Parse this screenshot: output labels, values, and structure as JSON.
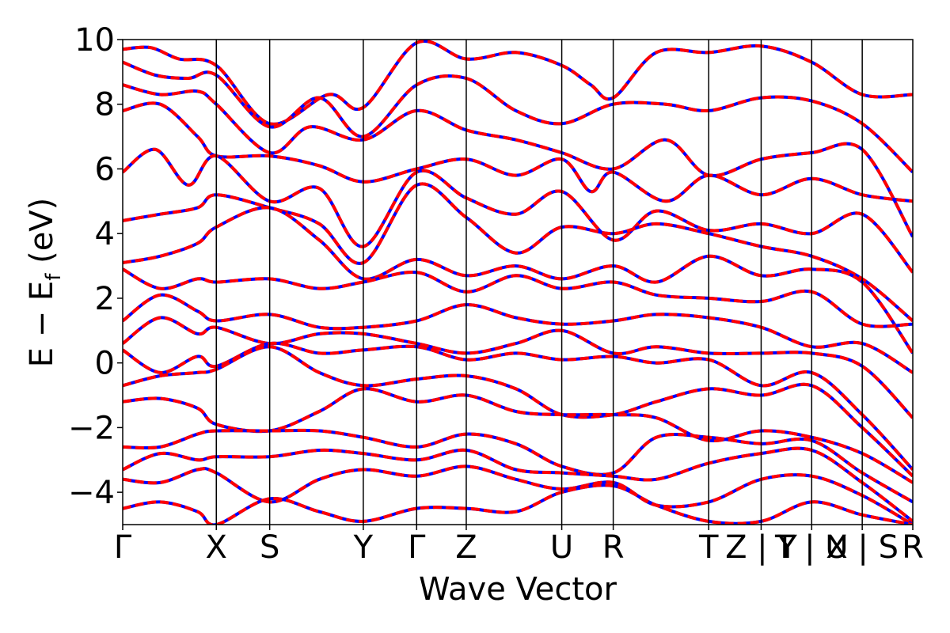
{
  "chart_data": {
    "type": "line",
    "title": "",
    "xlabel": "Wave Vector",
    "ylabel": "E − E_f (eV)",
    "ylabel_main": "E − E",
    "ylabel_sub": "f",
    "ylabel_unit": " (eV)",
    "ylim": [
      -5,
      10
    ],
    "xlim": [
      0,
      8.44
    ],
    "grid": false,
    "yticks": [
      -4,
      -2,
      0,
      2,
      4,
      6,
      8,
      10
    ],
    "ytick_labels": [
      "−4",
      "−2",
      "0",
      "2",
      "4",
      "6",
      "8",
      "10"
    ],
    "kpath_ticks": [
      {
        "label": "Γ",
        "x": 0.0
      },
      {
        "label": "X",
        "x": 1.0
      },
      {
        "label": "S",
        "x": 1.57
      },
      {
        "label": "Y",
        "x": 2.57
      },
      {
        "label": "Γ",
        "x": 3.14
      },
      {
        "label": "Z",
        "x": 3.67
      },
      {
        "label": "U",
        "x": 4.69
      },
      {
        "label": "R",
        "x": 5.24
      },
      {
        "label": "T",
        "x": 6.26
      },
      {
        "label": "Z | Y",
        "x": 6.82
      },
      {
        "label": "T | U",
        "x": 7.36
      },
      {
        "label": "X | S",
        "x": 7.9
      },
      {
        "label": "R",
        "x": 8.44
      }
    ],
    "vlines": [
      1.0,
      1.57,
      2.57,
      3.14,
      3.67,
      4.69,
      5.24,
      6.26,
      6.82,
      7.36,
      7.9
    ],
    "series": [
      {
        "color": "#0000ff",
        "dash": "solid"
      },
      {
        "color": "#ff0000",
        "dash": "dashed"
      }
    ],
    "bands": [
      [
        [
          0,
          9.7
        ],
        [
          0.3,
          9.75
        ],
        [
          0.6,
          9.4
        ],
        [
          1.0,
          9.2
        ],
        [
          1.57,
          7.4
        ],
        [
          2.2,
          8.3
        ],
        [
          2.57,
          7.9
        ],
        [
          3.14,
          9.9
        ],
        [
          3.67,
          9.4
        ],
        [
          4.2,
          9.6
        ],
        [
          4.69,
          9.2
        ],
        [
          5.0,
          8.6
        ],
        [
          5.24,
          8.2
        ],
        [
          5.7,
          9.6
        ],
        [
          6.26,
          9.6
        ],
        [
          6.82,
          9.8
        ],
        [
          7.36,
          9.3
        ],
        [
          7.9,
          8.3
        ],
        [
          8.44,
          8.3
        ]
      ],
      [
        [
          0,
          9.3
        ],
        [
          0.35,
          8.9
        ],
        [
          0.7,
          8.8
        ],
        [
          1.0,
          8.9
        ],
        [
          1.57,
          7.3
        ],
        [
          2.1,
          8.2
        ],
        [
          2.57,
          7.0
        ],
        [
          3.14,
          8.6
        ],
        [
          3.67,
          8.8
        ],
        [
          4.2,
          7.8
        ],
        [
          4.69,
          7.4
        ],
        [
          5.24,
          8.0
        ],
        [
          5.8,
          8.0
        ],
        [
          6.26,
          7.8
        ],
        [
          6.82,
          8.2
        ],
        [
          7.36,
          8.1
        ],
        [
          7.9,
          7.4
        ],
        [
          8.44,
          5.9
        ]
      ],
      [
        [
          0,
          8.6
        ],
        [
          0.4,
          8.3
        ],
        [
          0.8,
          8.4
        ],
        [
          1.0,
          8.0
        ],
        [
          1.57,
          6.5
        ],
        [
          2.0,
          7.3
        ],
        [
          2.57,
          6.9
        ],
        [
          3.14,
          7.8
        ],
        [
          3.67,
          7.2
        ],
        [
          4.2,
          6.9
        ],
        [
          4.69,
          6.5
        ],
        [
          5.24,
          6.0
        ],
        [
          5.8,
          6.9
        ],
        [
          6.26,
          5.8
        ],
        [
          6.82,
          6.3
        ],
        [
          7.36,
          6.5
        ],
        [
          7.9,
          6.6
        ],
        [
          8.44,
          3.9
        ]
      ],
      [
        [
          0,
          7.8
        ],
        [
          0.4,
          8.0
        ],
        [
          0.8,
          7.0
        ],
        [
          1.0,
          6.4
        ],
        [
          1.57,
          6.4
        ],
        [
          2.1,
          6.1
        ],
        [
          2.57,
          5.6
        ],
        [
          3.14,
          6.0
        ],
        [
          3.67,
          6.3
        ],
        [
          4.2,
          5.8
        ],
        [
          4.69,
          6.3
        ],
        [
          5.0,
          5.3
        ],
        [
          5.24,
          5.9
        ],
        [
          5.8,
          5.0
        ],
        [
          6.26,
          5.8
        ],
        [
          6.82,
          5.2
        ],
        [
          7.36,
          5.7
        ],
        [
          7.9,
          5.2
        ],
        [
          8.44,
          5.0
        ]
      ],
      [
        [
          0,
          5.9
        ],
        [
          0.35,
          6.6
        ],
        [
          0.7,
          5.5
        ],
        [
          1.0,
          6.4
        ],
        [
          1.57,
          5.0
        ],
        [
          2.1,
          5.4
        ],
        [
          2.57,
          3.6
        ],
        [
          3.14,
          5.9
        ],
        [
          3.67,
          5.1
        ],
        [
          4.2,
          4.6
        ],
        [
          4.69,
          5.3
        ],
        [
          5.24,
          3.8
        ],
        [
          5.7,
          4.7
        ],
        [
          6.26,
          4.1
        ],
        [
          6.82,
          4.3
        ],
        [
          7.36,
          4.0
        ],
        [
          7.9,
          4.6
        ],
        [
          8.44,
          2.8
        ]
      ],
      [
        [
          0,
          4.4
        ],
        [
          0.4,
          4.6
        ],
        [
          0.8,
          4.8
        ],
        [
          1.0,
          5.2
        ],
        [
          1.57,
          4.8
        ],
        [
          2.1,
          4.3
        ],
        [
          2.57,
          3.1
        ],
        [
          3.14,
          5.5
        ],
        [
          3.67,
          4.5
        ],
        [
          4.2,
          3.4
        ],
        [
          4.69,
          4.2
        ],
        [
          5.24,
          4.0
        ],
        [
          5.7,
          4.3
        ],
        [
          6.26,
          4.0
        ],
        [
          6.82,
          3.6
        ],
        [
          7.36,
          3.3
        ],
        [
          7.9,
          2.6
        ],
        [
          8.44,
          1.3
        ]
      ],
      [
        [
          0,
          3.1
        ],
        [
          0.4,
          3.3
        ],
        [
          0.8,
          3.7
        ],
        [
          1.0,
          4.2
        ],
        [
          1.57,
          4.8
        ],
        [
          2.1,
          3.8
        ],
        [
          2.57,
          2.6
        ],
        [
          3.14,
          3.2
        ],
        [
          3.67,
          2.7
        ],
        [
          4.2,
          3.0
        ],
        [
          4.69,
          2.6
        ],
        [
          5.24,
          3.0
        ],
        [
          5.7,
          2.5
        ],
        [
          6.26,
          3.3
        ],
        [
          6.82,
          2.7
        ],
        [
          7.36,
          2.9
        ],
        [
          7.9,
          2.5
        ],
        [
          8.44,
          0.3
        ]
      ],
      [
        [
          0,
          2.9
        ],
        [
          0.4,
          2.3
        ],
        [
          0.8,
          2.6
        ],
        [
          1.0,
          2.5
        ],
        [
          1.57,
          2.6
        ],
        [
          2.1,
          2.3
        ],
        [
          2.57,
          2.5
        ],
        [
          3.14,
          2.8
        ],
        [
          3.67,
          2.2
        ],
        [
          4.2,
          2.7
        ],
        [
          4.69,
          2.3
        ],
        [
          5.24,
          2.5
        ],
        [
          5.7,
          2.1
        ],
        [
          6.26,
          2.0
        ],
        [
          6.82,
          1.9
        ],
        [
          7.36,
          2.2
        ],
        [
          7.9,
          1.2
        ],
        [
          8.44,
          1.2
        ]
      ],
      [
        [
          0,
          1.3
        ],
        [
          0.4,
          2.1
        ],
        [
          0.8,
          1.6
        ],
        [
          1.0,
          1.3
        ],
        [
          1.57,
          1.5
        ],
        [
          2.1,
          1.1
        ],
        [
          2.57,
          1.1
        ],
        [
          3.14,
          1.3
        ],
        [
          3.67,
          1.8
        ],
        [
          4.2,
          1.4
        ],
        [
          4.69,
          1.2
        ],
        [
          5.24,
          1.3
        ],
        [
          5.7,
          1.5
        ],
        [
          6.26,
          1.4
        ],
        [
          6.82,
          1.1
        ],
        [
          7.36,
          0.5
        ],
        [
          7.9,
          0.6
        ],
        [
          8.44,
          -0.3
        ]
      ],
      [
        [
          0,
          0.6
        ],
        [
          0.4,
          1.4
        ],
        [
          0.8,
          0.9
        ],
        [
          1.0,
          1.1
        ],
        [
          1.57,
          0.6
        ],
        [
          2.1,
          0.9
        ],
        [
          2.57,
          0.9
        ],
        [
          3.14,
          0.6
        ],
        [
          3.67,
          0.3
        ],
        [
          4.2,
          0.6
        ],
        [
          4.69,
          1.0
        ],
        [
          5.24,
          0.3
        ],
        [
          5.7,
          0.5
        ],
        [
          6.26,
          0.3
        ],
        [
          6.82,
          0.3
        ],
        [
          7.36,
          0.3
        ],
        [
          7.9,
          -0.1
        ],
        [
          8.44,
          -1.7
        ]
      ],
      [
        [
          0,
          0.4
        ],
        [
          0.4,
          -0.3
        ],
        [
          0.8,
          0.2
        ],
        [
          1.0,
          -0.1
        ],
        [
          1.57,
          0.6
        ],
        [
          2.1,
          0.3
        ],
        [
          2.57,
          0.4
        ],
        [
          3.14,
          0.5
        ],
        [
          3.67,
          0.1
        ],
        [
          4.2,
          0.3
        ],
        [
          4.69,
          0.1
        ],
        [
          5.24,
          0.2
        ],
        [
          5.7,
          0.0
        ],
        [
          6.26,
          0.1
        ],
        [
          6.82,
          -0.7
        ],
        [
          7.36,
          -0.3
        ],
        [
          7.9,
          -1.6
        ],
        [
          8.44,
          -3.3
        ]
      ],
      [
        [
          0,
          -0.7
        ],
        [
          0.4,
          -0.4
        ],
        [
          0.8,
          -0.3
        ],
        [
          1.0,
          -0.2
        ],
        [
          1.57,
          0.5
        ],
        [
          2.1,
          -0.3
        ],
        [
          2.57,
          -0.7
        ],
        [
          3.14,
          -0.5
        ],
        [
          3.67,
          -0.4
        ],
        [
          4.2,
          -0.8
        ],
        [
          4.69,
          -1.6
        ],
        [
          5.24,
          -1.6
        ],
        [
          5.7,
          -1.2
        ],
        [
          6.26,
          -0.8
        ],
        [
          6.82,
          -1.0
        ],
        [
          7.36,
          -0.7
        ],
        [
          7.9,
          -2.0
        ],
        [
          8.44,
          -3.5
        ]
      ],
      [
        [
          0,
          -1.2
        ],
        [
          0.4,
          -1.1
        ],
        [
          0.8,
          -1.4
        ],
        [
          1.0,
          -1.9
        ],
        [
          1.57,
          -2.1
        ],
        [
          2.1,
          -1.5
        ],
        [
          2.57,
          -0.8
        ],
        [
          3.14,
          -1.2
        ],
        [
          3.67,
          -1.0
        ],
        [
          4.2,
          -1.5
        ],
        [
          4.69,
          -1.6
        ],
        [
          5.24,
          -1.6
        ],
        [
          5.7,
          -1.7
        ],
        [
          6.26,
          -2.4
        ],
        [
          6.82,
          -2.1
        ],
        [
          7.36,
          -2.3
        ],
        [
          7.9,
          -2.8
        ],
        [
          8.44,
          -3.7
        ]
      ],
      [
        [
          0,
          -2.6
        ],
        [
          0.4,
          -2.6
        ],
        [
          0.8,
          -2.2
        ],
        [
          1.0,
          -2.1
        ],
        [
          1.57,
          -2.1
        ],
        [
          2.1,
          -2.1
        ],
        [
          2.57,
          -2.3
        ],
        [
          3.14,
          -2.6
        ],
        [
          3.67,
          -2.2
        ],
        [
          4.2,
          -2.5
        ],
        [
          4.69,
          -3.2
        ],
        [
          5.24,
          -3.4
        ],
        [
          5.7,
          -2.3
        ],
        [
          6.26,
          -2.3
        ],
        [
          6.82,
          -2.5
        ],
        [
          7.36,
          -2.4
        ],
        [
          7.9,
          -3.4
        ],
        [
          8.44,
          -4.3
        ]
      ],
      [
        [
          0,
          -3.3
        ],
        [
          0.4,
          -2.8
        ],
        [
          0.8,
          -3.0
        ],
        [
          1.0,
          -2.9
        ],
        [
          1.57,
          -2.9
        ],
        [
          2.1,
          -2.7
        ],
        [
          2.57,
          -2.8
        ],
        [
          3.14,
          -3.0
        ],
        [
          3.67,
          -2.7
        ],
        [
          4.2,
          -3.3
        ],
        [
          4.69,
          -3.4
        ],
        [
          5.24,
          -3.5
        ],
        [
          5.7,
          -3.6
        ],
        [
          6.26,
          -3.1
        ],
        [
          6.82,
          -2.8
        ],
        [
          7.36,
          -2.7
        ],
        [
          7.9,
          -3.7
        ],
        [
          8.44,
          -4.9
        ]
      ],
      [
        [
          0,
          -3.6
        ],
        [
          0.4,
          -3.7
        ],
        [
          0.8,
          -3.3
        ],
        [
          1.0,
          -3.4
        ],
        [
          1.57,
          -4.3
        ],
        [
          2.1,
          -3.6
        ],
        [
          2.57,
          -3.3
        ],
        [
          3.14,
          -3.5
        ],
        [
          3.67,
          -3.2
        ],
        [
          4.2,
          -3.6
        ],
        [
          4.69,
          -3.9
        ],
        [
          5.24,
          -3.7
        ],
        [
          5.7,
          -4.4
        ],
        [
          6.26,
          -4.3
        ],
        [
          6.82,
          -3.6
        ],
        [
          7.36,
          -3.5
        ],
        [
          7.9,
          -4.1
        ],
        [
          8.44,
          -5.0
        ]
      ],
      [
        [
          0,
          -4.5
        ],
        [
          0.4,
          -4.3
        ],
        [
          0.8,
          -4.6
        ],
        [
          1.0,
          -5.0
        ],
        [
          1.57,
          -4.2
        ],
        [
          2.1,
          -4.6
        ],
        [
          2.57,
          -4.9
        ],
        [
          3.14,
          -4.5
        ],
        [
          3.67,
          -4.5
        ],
        [
          4.2,
          -4.6
        ],
        [
          4.69,
          -4.0
        ],
        [
          5.24,
          -3.8
        ],
        [
          5.7,
          -4.4
        ],
        [
          6.26,
          -4.9
        ],
        [
          6.82,
          -4.9
        ],
        [
          7.36,
          -4.3
        ],
        [
          7.9,
          -4.7
        ],
        [
          8.44,
          -5.0
        ]
      ]
    ]
  }
}
